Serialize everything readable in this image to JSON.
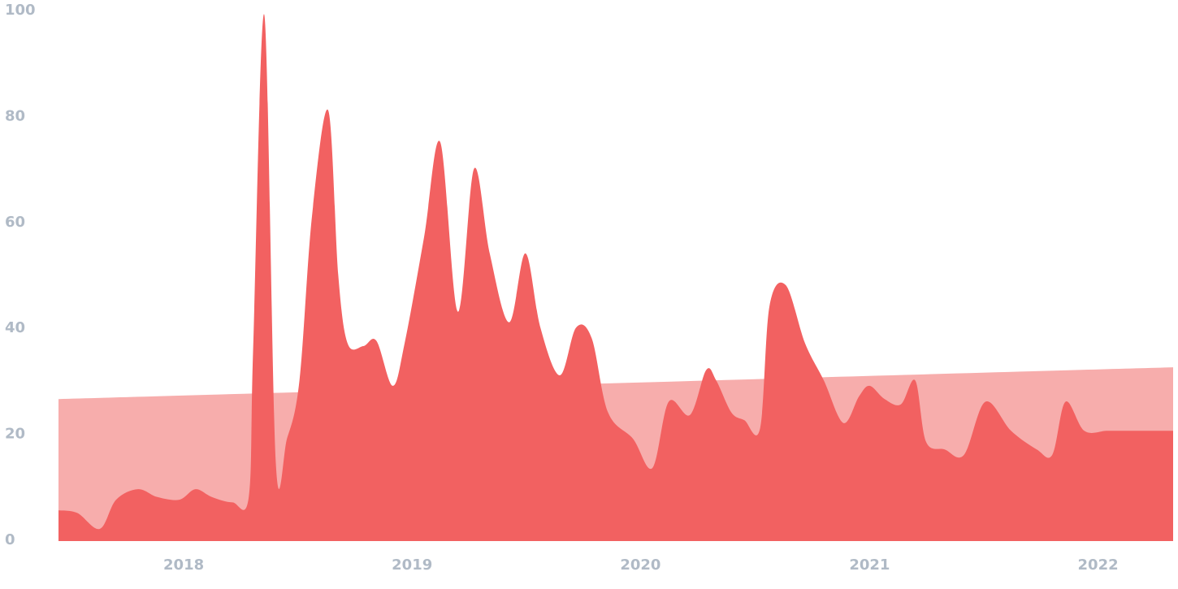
{
  "chart_data": {
    "type": "area",
    "title": "",
    "xlabel": "",
    "ylabel": "",
    "ylim": [
      0,
      100
    ],
    "xlim": [
      "2017-06-15",
      "2022-05-01"
    ],
    "grid": false,
    "legend": "none",
    "y_ticks": [
      "0",
      "20",
      "40",
      "60",
      "80",
      "100"
    ],
    "x_ticks": [
      {
        "label": "2018",
        "date": "2018-01-01"
      },
      {
        "label": "2019",
        "date": "2019-01-01"
      },
      {
        "label": "2020",
        "date": "2020-01-01"
      },
      {
        "label": "2021",
        "date": "2021-01-01"
      },
      {
        "label": "2022",
        "date": "2022-01-01"
      }
    ],
    "series": [
      {
        "color": "#f26161",
        "x": [
          "2017-06-15",
          "2017-07-15",
          "2017-08-20",
          "2017-09-15",
          "2017-10-20",
          "2017-11-20",
          "2017-12-25",
          "2018-01-20",
          "2018-02-15",
          "2018-03-20",
          "2018-04-15",
          "2018-04-22",
          "2018-05-10",
          "2018-05-28",
          "2018-06-15",
          "2018-07-05",
          "2018-07-25",
          "2018-08-20",
          "2018-09-05",
          "2018-09-20",
          "2018-10-15",
          "2018-11-05",
          "2018-12-01",
          "2018-12-20",
          "2019-01-20",
          "2019-02-15",
          "2019-03-15",
          "2019-04-10",
          "2019-05-05",
          "2019-06-05",
          "2019-07-01",
          "2019-07-25",
          "2019-08-25",
          "2019-09-20",
          "2019-10-15",
          "2019-11-10",
          "2019-12-20",
          "2020-01-20",
          "2020-02-15",
          "2020-03-20",
          "2020-04-15",
          "2020-05-01",
          "2020-05-25",
          "2020-06-15",
          "2020-07-10",
          "2020-07-25",
          "2020-08-20",
          "2020-09-20",
          "2020-10-20",
          "2020-11-20",
          "2020-12-15",
          "2021-01-01",
          "2021-01-25",
          "2021-02-20",
          "2021-03-15",
          "2021-04-01",
          "2021-05-01",
          "2021-06-01",
          "2021-07-05",
          "2021-08-15",
          "2021-09-25",
          "2021-10-20",
          "2021-11-10",
          "2021-12-10",
          "2022-01-15",
          "2022-02-15",
          "2022-03-10",
          "2022-04-01",
          "2022-05-01"
        ],
        "values": [
          5.5,
          5,
          2,
          7.5,
          9.5,
          8,
          7.5,
          9.5,
          8,
          7,
          8,
          36,
          99,
          15,
          19,
          30,
          61,
          81,
          50,
          37,
          36.5,
          37.5,
          29,
          37,
          57,
          75,
          43,
          70,
          54,
          41,
          54,
          40,
          31,
          40,
          38,
          24,
          19,
          13.5,
          26,
          23.5,
          32,
          30,
          24,
          22.5,
          21,
          44,
          48,
          37,
          30,
          22,
          27,
          29,
          26.5,
          25.5,
          30,
          18.5,
          17,
          16,
          26,
          20.5,
          17,
          16,
          26,
          20.5,
          20.5,
          20.5,
          20.5,
          20.5,
          20.5
        ]
      },
      {
        "color": "#f7adac",
        "x": [
          "2017-06-15",
          "2022-05-01"
        ],
        "values": [
          26.5,
          32.5
        ]
      }
    ]
  }
}
